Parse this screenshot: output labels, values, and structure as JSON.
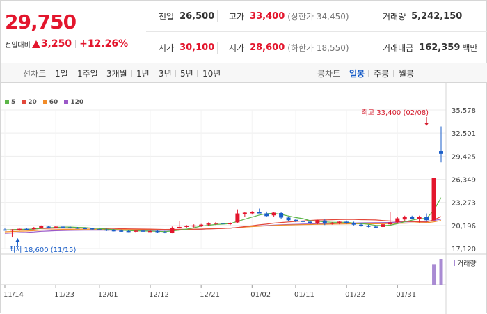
{
  "summary": {
    "price": "29,750",
    "change_label": "전일대비",
    "change_amount": "3,250",
    "change_percent": "+12.26%",
    "prev_close_label": "전일",
    "prev_close": "26,500",
    "high_label": "고가",
    "high": "33,400",
    "upper_limit": "(상한가 34,450)",
    "volume_label": "거래량",
    "volume": "5,242,150",
    "open_label": "시가",
    "open": "30,100",
    "low_label": "저가",
    "low": "28,600",
    "lower_limit": "(하한가 18,550)",
    "amount_label": "거래대금",
    "amount": "162,359",
    "amount_unit": "백만"
  },
  "toolbar": {
    "line_label": "선차트",
    "periods": [
      "1일",
      "1주일",
      "3개월",
      "1년",
      "3년",
      "5년",
      "10년"
    ],
    "candle_label": "봉차트",
    "candle_types": [
      "일봉",
      "주봉",
      "월봉"
    ],
    "active_candle": "일봉"
  },
  "colors": {
    "up": "#e3162d",
    "down": "#1a5ec8",
    "ma5": "#5cb648",
    "ma20": "#e3483b",
    "ma60": "#f28c28",
    "ma120": "#9b59c8"
  },
  "chart_data": {
    "type": "candlestick",
    "legend": [
      {
        "name": "5",
        "color": "#5cb648"
      },
      {
        "name": "20",
        "color": "#e3483b"
      },
      {
        "name": "60",
        "color": "#f28c28"
      },
      {
        "name": "120",
        "color": "#9b59c8"
      }
    ],
    "y_ticks": [
      "35,578",
      "32,501",
      "29,425",
      "26,349",
      "23,273",
      "20,196",
      "17,120"
    ],
    "ylim": [
      17120,
      35578
    ],
    "x_ticks": [
      {
        "label": "11/14",
        "index": 0
      },
      {
        "label": "11/23",
        "index": 7
      },
      {
        "label": "12/01",
        "index": 13
      },
      {
        "label": "12/12",
        "index": 20
      },
      {
        "label": "12/21",
        "index": 27
      },
      {
        "label": "01/02",
        "index": 34
      },
      {
        "label": "01/11",
        "index": 40
      },
      {
        "label": "01/22",
        "index": 47
      },
      {
        "label": "01/31",
        "index": 54
      }
    ],
    "annotations": {
      "high": {
        "text": "최고 33,400 (02/08)",
        "index": 58,
        "value": 33400
      },
      "low": {
        "text": "최저 18,600 (11/15)",
        "index": 1,
        "value": 18600
      }
    },
    "volume_label": "거래량",
    "candles": [
      {
        "o": 19650,
        "h": 19800,
        "l": 19500,
        "c": 19600
      },
      {
        "o": 19600,
        "h": 19700,
        "l": 18600,
        "c": 19650
      },
      {
        "o": 19650,
        "h": 19800,
        "l": 19500,
        "c": 19750
      },
      {
        "o": 19750,
        "h": 19850,
        "l": 19600,
        "c": 19700
      },
      {
        "o": 19700,
        "h": 20000,
        "l": 19650,
        "c": 19900
      },
      {
        "o": 19900,
        "h": 20200,
        "l": 19800,
        "c": 20100
      },
      {
        "o": 20050,
        "h": 20150,
        "l": 19850,
        "c": 19950
      },
      {
        "o": 19950,
        "h": 20100,
        "l": 19850,
        "c": 20050
      },
      {
        "o": 20050,
        "h": 20150,
        "l": 19900,
        "c": 19950
      },
      {
        "o": 19950,
        "h": 20050,
        "l": 19800,
        "c": 19900
      },
      {
        "o": 19900,
        "h": 20000,
        "l": 19750,
        "c": 19850
      },
      {
        "o": 19850,
        "h": 19950,
        "l": 19700,
        "c": 19800
      },
      {
        "o": 19800,
        "h": 19900,
        "l": 19650,
        "c": 19700
      },
      {
        "o": 19700,
        "h": 19850,
        "l": 19550,
        "c": 19650
      },
      {
        "o": 19650,
        "h": 19750,
        "l": 19450,
        "c": 19550
      },
      {
        "o": 19550,
        "h": 19700,
        "l": 19400,
        "c": 19500
      },
      {
        "o": 19500,
        "h": 19650,
        "l": 19350,
        "c": 19450
      },
      {
        "o": 19450,
        "h": 19600,
        "l": 19300,
        "c": 19400
      },
      {
        "o": 19400,
        "h": 19550,
        "l": 19300,
        "c": 19500
      },
      {
        "o": 19500,
        "h": 19650,
        "l": 19350,
        "c": 19400
      },
      {
        "o": 19400,
        "h": 19550,
        "l": 19300,
        "c": 19450
      },
      {
        "o": 19450,
        "h": 19550,
        "l": 19250,
        "c": 19300
      },
      {
        "o": 19300,
        "h": 19450,
        "l": 19150,
        "c": 19200
      },
      {
        "o": 19200,
        "h": 20050,
        "l": 19150,
        "c": 19900
      },
      {
        "o": 19900,
        "h": 20750,
        "l": 19800,
        "c": 20000
      },
      {
        "o": 20000,
        "h": 20250,
        "l": 19850,
        "c": 20150
      },
      {
        "o": 20150,
        "h": 20350,
        "l": 19950,
        "c": 20200
      },
      {
        "o": 20150,
        "h": 20400,
        "l": 20000,
        "c": 20300
      },
      {
        "o": 20300,
        "h": 20600,
        "l": 20150,
        "c": 20450
      },
      {
        "o": 20400,
        "h": 20650,
        "l": 20250,
        "c": 20550
      },
      {
        "o": 20550,
        "h": 20750,
        "l": 20300,
        "c": 20400
      },
      {
        "o": 20400,
        "h": 20600,
        "l": 20250,
        "c": 20500
      },
      {
        "o": 20600,
        "h": 22350,
        "l": 20500,
        "c": 21800
      },
      {
        "o": 21700,
        "h": 22000,
        "l": 21350,
        "c": 21900
      },
      {
        "o": 21900,
        "h": 22100,
        "l": 21650,
        "c": 21950
      },
      {
        "o": 22000,
        "h": 22450,
        "l": 21850,
        "c": 21800
      },
      {
        "o": 21800,
        "h": 22050,
        "l": 21300,
        "c": 21450
      },
      {
        "o": 21550,
        "h": 21950,
        "l": 21350,
        "c": 21900
      },
      {
        "o": 21850,
        "h": 22000,
        "l": 21050,
        "c": 21250
      },
      {
        "o": 21250,
        "h": 21400,
        "l": 20750,
        "c": 20900
      },
      {
        "o": 20950,
        "h": 21100,
        "l": 20650,
        "c": 20800
      },
      {
        "o": 20800,
        "h": 20950,
        "l": 20550,
        "c": 20700
      },
      {
        "o": 20700,
        "h": 20850,
        "l": 20400,
        "c": 20500
      },
      {
        "o": 20500,
        "h": 20950,
        "l": 20350,
        "c": 20900
      },
      {
        "o": 20850,
        "h": 21000,
        "l": 20250,
        "c": 20450
      },
      {
        "o": 20450,
        "h": 20650,
        "l": 20300,
        "c": 20550
      },
      {
        "o": 20600,
        "h": 20800,
        "l": 20350,
        "c": 20700
      },
      {
        "o": 20700,
        "h": 20850,
        "l": 20400,
        "c": 20550
      },
      {
        "o": 20550,
        "h": 20700,
        "l": 20200,
        "c": 20300
      },
      {
        "o": 20300,
        "h": 20450,
        "l": 20050,
        "c": 20150
      },
      {
        "o": 20150,
        "h": 20300,
        "l": 19950,
        "c": 20050
      },
      {
        "o": 20050,
        "h": 20200,
        "l": 19900,
        "c": 20000
      },
      {
        "o": 20000,
        "h": 20450,
        "l": 19950,
        "c": 20350
      },
      {
        "o": 20350,
        "h": 21950,
        "l": 20250,
        "c": 20600
      },
      {
        "o": 20600,
        "h": 21300,
        "l": 20450,
        "c": 21150
      },
      {
        "o": 21000,
        "h": 21500,
        "l": 20800,
        "c": 21300
      },
      {
        "o": 21300,
        "h": 21500,
        "l": 21000,
        "c": 21100
      },
      {
        "o": 21100,
        "h": 21500,
        "l": 20600,
        "c": 21300
      },
      {
        "o": 21300,
        "h": 21800,
        "l": 20700,
        "c": 20900
      },
      {
        "o": 20900,
        "h": 26500,
        "l": 20900,
        "c": 26500
      },
      {
        "o": 30100,
        "h": 33400,
        "l": 28600,
        "c": 29750
      }
    ],
    "volumes": [
      0,
      0,
      0,
      0,
      0,
      0,
      0,
      0,
      0,
      0,
      0,
      0,
      0,
      0,
      0,
      0,
      0,
      0,
      0,
      0,
      0,
      0,
      0,
      0,
      0,
      0,
      0,
      0,
      0,
      0,
      0,
      0,
      0,
      0,
      0,
      0,
      0,
      0,
      0,
      0,
      0,
      0,
      0,
      0,
      0,
      0,
      0,
      0,
      0,
      0,
      0,
      0,
      0,
      0,
      0,
      0,
      0,
      0,
      0,
      4200000,
      5242150
    ]
  }
}
